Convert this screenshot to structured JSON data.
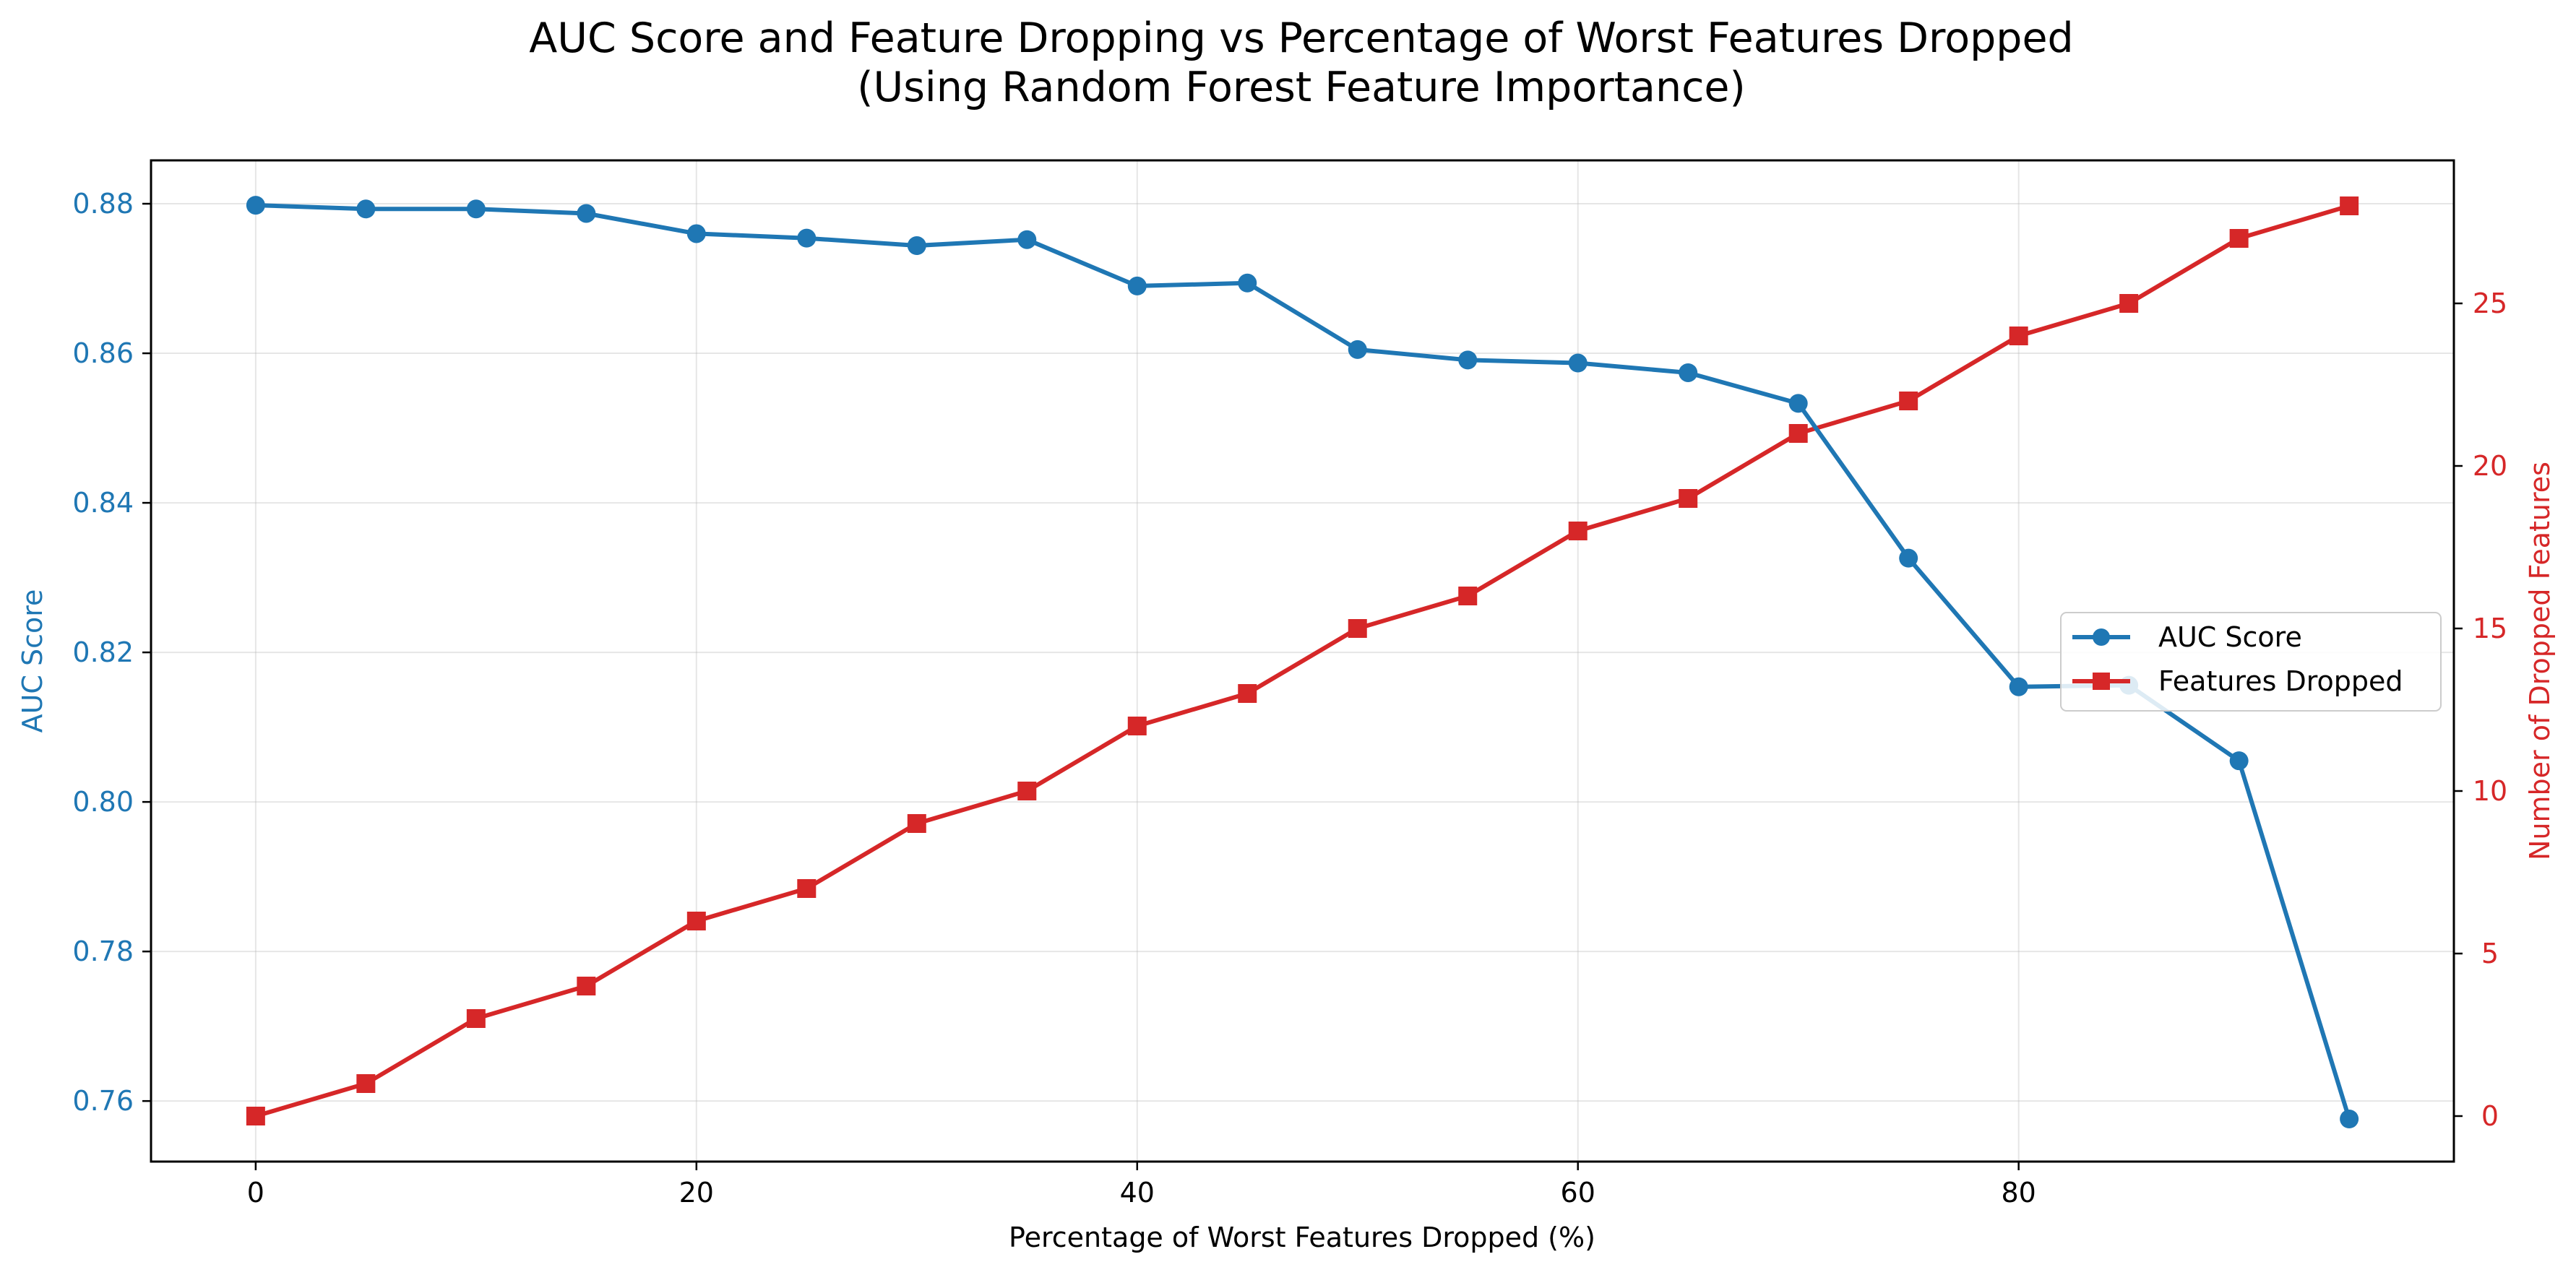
{
  "colors": {
    "auc": "#1f77b4",
    "features": "#d62728",
    "axis": "#000000"
  },
  "chart_data": {
    "type": "line",
    "title": "AUC Score and Feature Dropping vs Percentage of Worst Features Dropped",
    "subtitle": "(Using Random Forest Feature Importance)",
    "xlabel": "Percentage of Worst Features Dropped (%)",
    "ylabel_left": "AUC Score",
    "ylabel_right": "Number of Dropped Features",
    "xlim": [
      -4.75,
      99.75
    ],
    "ylim_left": [
      0.7519,
      0.8858
    ],
    "ylim_right": [
      -1.4,
      29.4
    ],
    "x_ticks": [
      0,
      20,
      40,
      60,
      80
    ],
    "y_left_ticks": [
      0.76,
      0.78,
      0.8,
      0.82,
      0.84,
      0.86,
      0.88
    ],
    "y_right_ticks": [
      0,
      5,
      10,
      15,
      20,
      25
    ],
    "grid": true,
    "legend_position": "center-right",
    "x": [
      0,
      5,
      10,
      15,
      20,
      25,
      30,
      35,
      40,
      45,
      50,
      55,
      60,
      65,
      70,
      75,
      80,
      85,
      90,
      95
    ],
    "series": [
      {
        "name": "AUC Score",
        "axis": "left",
        "marker": "circle",
        "values": [
          0.8798,
          0.8793,
          0.8793,
          0.8787,
          0.876,
          0.8754,
          0.8744,
          0.8752,
          0.869,
          0.8694,
          0.8605,
          0.8591,
          0.8587,
          0.8574,
          0.8533,
          0.8326,
          0.8154,
          0.8156,
          0.8055,
          0.7576
        ]
      },
      {
        "name": "Features Dropped",
        "axis": "right",
        "marker": "square",
        "values": [
          0,
          1,
          3,
          4,
          6,
          7,
          9,
          10,
          12,
          13,
          15,
          16,
          18,
          19,
          21,
          22,
          24,
          25,
          27,
          28
        ]
      }
    ]
  }
}
